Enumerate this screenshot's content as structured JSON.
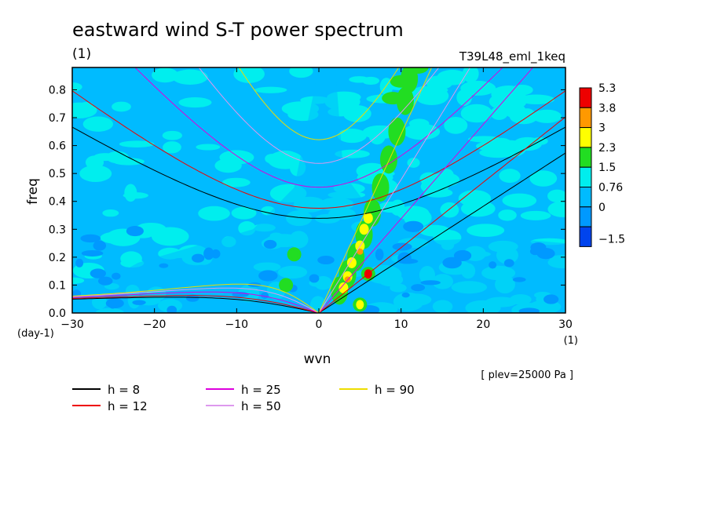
{
  "figure": {
    "title": "eastward wind S-T power spectrum",
    "title_unit": "(1)",
    "run_label": "T39L48_eml_1keq",
    "plev_note": "[ plev=25000 Pa ]"
  },
  "chart_data": {
    "type": "heatmap",
    "xlabel": "wvn",
    "ylabel": "freq",
    "x_unit": "(1)",
    "y_unit": "(day-1)",
    "xlim": [
      -30,
      30
    ],
    "ylim": [
      0,
      0.88
    ],
    "x_ticks": [
      -30,
      -20,
      -10,
      0,
      10,
      20,
      30
    ],
    "x_tick_labels": [
      "−30",
      "−20",
      "−10",
      "0",
      "10",
      "20",
      "30"
    ],
    "y_ticks": [
      0,
      0.1,
      0.2,
      0.3,
      0.4,
      0.5,
      0.6,
      0.7,
      0.8
    ],
    "y_tick_labels": [
      "0.0",
      "0.1",
      "0.2",
      "0.3",
      "0.4",
      "0.5",
      "0.6",
      "0.7",
      "0.8"
    ],
    "colorbar": {
      "levels": [
        "5.3",
        "3.8",
        "3",
        "2.3",
        "1.5",
        "0.76",
        "0",
        "−1.5"
      ],
      "colors": [
        "#ee0000",
        "#ff9900",
        "#ffff00",
        "#22dd22",
        "#00eeee",
        "#00bbff",
        "#0099ff",
        "#0044ee"
      ]
    },
    "field_background": "#00bbff",
    "features": {
      "main_field_level": 0.76,
      "equatorial_low_freq_region_level": 0,
      "kelvin_ridge_level": "1.5 to 5.3",
      "maxima": [
        {
          "wvn": 6,
          "freq": 0.14,
          "level": 5.3
        },
        {
          "wvn": 5,
          "freq": 0.03,
          "level": 3
        },
        {
          "wvn": -3,
          "freq": 0.21,
          "level": 2.3
        },
        {
          "wvn": -4,
          "freq": 0.1,
          "level": 2.3
        }
      ]
    },
    "series": [
      {
        "name": "h =  8",
        "equivalent_depth_m": 8,
        "color": "#000000"
      },
      {
        "name": "h = 12",
        "equivalent_depth_m": 12,
        "color": "#ee0000"
      },
      {
        "name": "h = 25",
        "equivalent_depth_m": 25,
        "color": "#dd00dd"
      },
      {
        "name": "h = 50",
        "equivalent_depth_m": 50,
        "color": "#dd99ee"
      },
      {
        "name": "h = 90",
        "equivalent_depth_m": 90,
        "color": "#eedd00"
      }
    ],
    "grid": false,
    "legend_placement": "bottom-left"
  }
}
